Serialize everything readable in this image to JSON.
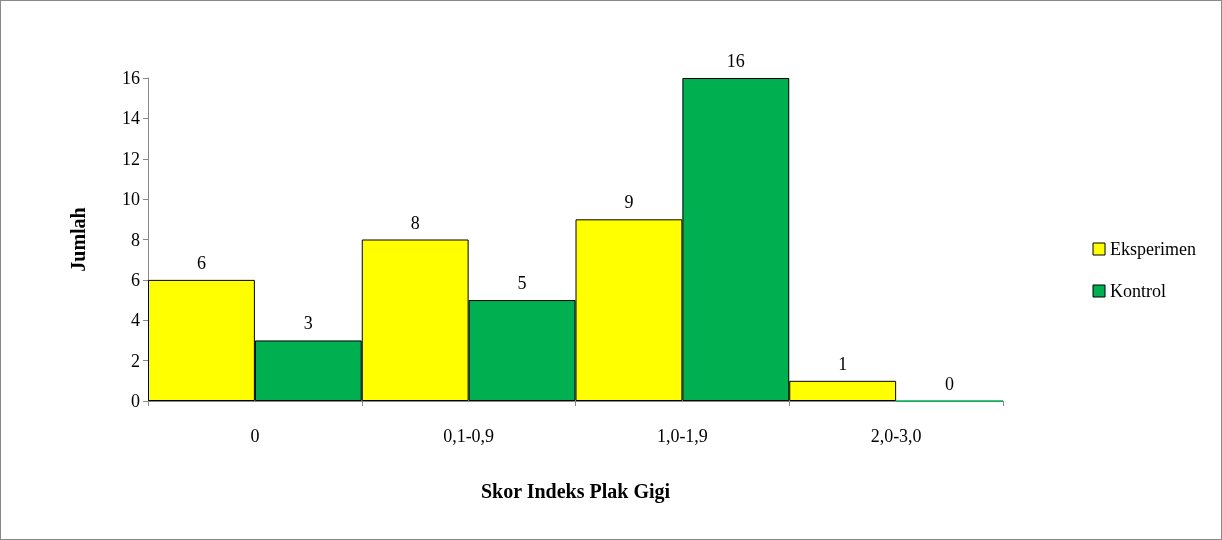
{
  "chart_data": {
    "type": "bar",
    "xlabel": "Skor Indeks Plak Gigi",
    "ylabel": "Jumlah",
    "categories": [
      "0",
      "0,1-0,9",
      "1,0-1,9",
      "2,0-3,0"
    ],
    "series": [
      {
        "name": "Eksperimen",
        "color": "#ffff00",
        "values": [
          6,
          8,
          9,
          1
        ]
      },
      {
        "name": "Kontrol",
        "color": "#00b050",
        "values": [
          3,
          5,
          16,
          0
        ]
      }
    ],
    "ylim": [
      0,
      16
    ],
    "yticks": [
      0,
      2,
      4,
      6,
      8,
      10,
      12,
      14,
      16
    ],
    "grid": false,
    "legend": "right",
    "data_labels": true
  }
}
